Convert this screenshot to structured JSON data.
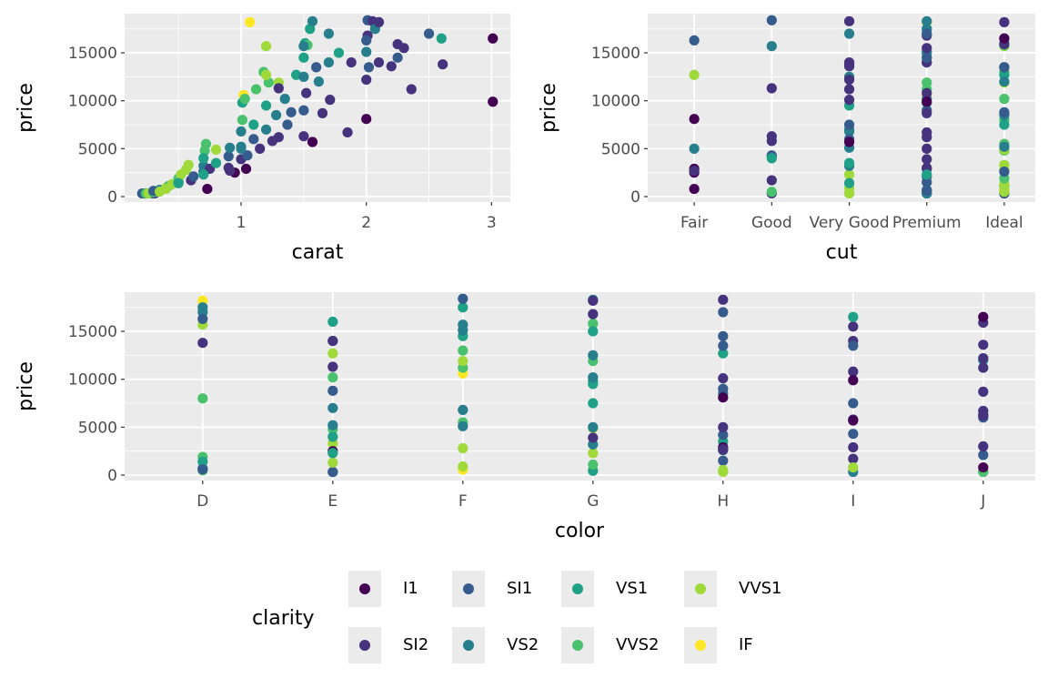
{
  "chart_data": {
    "type": "scatter",
    "fields": [
      "carat",
      "price",
      "cut",
      "color",
      "clarity"
    ],
    "points": [
      [
        0.23,
        326,
        "Ideal",
        "E",
        "SI2"
      ],
      [
        0.21,
        326,
        "Premium",
        "E",
        "SI1"
      ],
      [
        0.29,
        334,
        "Premium",
        "I",
        "VS2"
      ],
      [
        0.31,
        335,
        "Good",
        "J",
        "SI2"
      ],
      [
        0.24,
        336,
        "Very Good",
        "J",
        "VVS2"
      ],
      [
        0.26,
        337,
        "Very Good",
        "H",
        "VVS1"
      ],
      [
        0.3,
        450,
        "Ideal",
        "G",
        "VS1"
      ],
      [
        0.33,
        560,
        "Ideal",
        "F",
        "IF"
      ],
      [
        0.35,
        700,
        "Premium",
        "D",
        "VS2"
      ],
      [
        0.4,
        900,
        "Very Good",
        "F",
        "VVS1"
      ],
      [
        0.42,
        1100,
        "Ideal",
        "G",
        "VVS2"
      ],
      [
        0.45,
        1300,
        "Ideal",
        "E",
        "VVS1"
      ],
      [
        0.5,
        1500,
        "Premium",
        "H",
        "SI1"
      ],
      [
        0.5,
        1900,
        "Ideal",
        "D",
        "VVS2"
      ],
      [
        0.52,
        2300,
        "Very Good",
        "G",
        "VVS1"
      ],
      [
        0.56,
        2800,
        "Ideal",
        "F",
        "VVS1"
      ],
      [
        0.58,
        3300,
        "Ideal",
        "E",
        "VVS1"
      ],
      [
        0.6,
        1700,
        "Good",
        "I",
        "SI2"
      ],
      [
        0.62,
        2100,
        "Premium",
        "J",
        "SI1"
      ],
      [
        0.7,
        2600,
        "Ideal",
        "H",
        "SI1"
      ],
      [
        0.7,
        3200,
        "Very Good",
        "G",
        "VS2"
      ],
      [
        0.71,
        4800,
        "Ideal",
        "E",
        "VVS2"
      ],
      [
        0.72,
        5500,
        "Ideal",
        "F",
        "VVS2"
      ],
      [
        0.73,
        800,
        "Fair",
        "J",
        "I1"
      ],
      [
        0.75,
        2900,
        "Premium",
        "I",
        "SI2"
      ],
      [
        0.8,
        3500,
        "Very Good",
        "H",
        "VS1"
      ],
      [
        0.8,
        4900,
        "Ideal",
        "G",
        "VVS1"
      ],
      [
        0.9,
        3000,
        "Premium",
        "J",
        "SI2"
      ],
      [
        0.9,
        4200,
        "Good",
        "H",
        "SI1"
      ],
      [
        0.91,
        5100,
        "Very Good",
        "F",
        "VS2"
      ],
      [
        0.95,
        2500,
        "Fair",
        "E",
        "I1"
      ],
      [
        1.0,
        3900,
        "Premium",
        "G",
        "SI2"
      ],
      [
        1.0,
        5200,
        "Ideal",
        "E",
        "VS2"
      ],
      [
        1.0,
        6800,
        "Very Good",
        "F",
        "VS2"
      ],
      [
        1.01,
        8000,
        "Ideal",
        "D",
        "VVS2"
      ],
      [
        1.01,
        9800,
        "Premium",
        "G",
        "VS1"
      ],
      [
        1.02,
        10600,
        "Premium",
        "F",
        "IF"
      ],
      [
        1.03,
        10200,
        "Ideal",
        "E",
        "VVS2"
      ],
      [
        1.04,
        2900,
        "Fair",
        "H",
        "I1"
      ],
      [
        1.05,
        4300,
        "Good",
        "I",
        "SI1"
      ],
      [
        1.07,
        18200,
        "Premium",
        "D",
        "IF"
      ],
      [
        1.1,
        6000,
        "Very Good",
        "J",
        "SI1"
      ],
      [
        1.1,
        7500,
        "Ideal",
        "G",
        "VS1"
      ],
      [
        1.12,
        11200,
        "Premium",
        "F",
        "VVS2"
      ],
      [
        1.15,
        5000,
        "Premium",
        "H",
        "SI2"
      ],
      [
        1.18,
        13000,
        "Ideal",
        "F",
        "VVS2"
      ],
      [
        1.2,
        15700,
        "Ideal",
        "D",
        "VVS1"
      ],
      [
        1.2,
        7000,
        "Very Good",
        "E",
        "VS2"
      ],
      [
        1.2,
        9500,
        "Very Good",
        "G",
        "VS1"
      ],
      [
        1.22,
        11900,
        "Premium",
        "G",
        "VVS2"
      ],
      [
        1.25,
        5800,
        "Good",
        "I",
        "SI2"
      ],
      [
        1.28,
        8500,
        "Ideal",
        "H",
        "VS2"
      ],
      [
        1.3,
        11900,
        "Ideal",
        "F",
        "VVS1"
      ],
      [
        1.3,
        6200,
        "Premium",
        "J",
        "SI2"
      ],
      [
        1.35,
        10200,
        "Premium",
        "G",
        "VS2"
      ],
      [
        1.37,
        7500,
        "Very Good",
        "I",
        "SI1"
      ],
      [
        1.4,
        8800,
        "Ideal",
        "E",
        "SI1"
      ],
      [
        1.44,
        12700,
        "Ideal",
        "H",
        "VS1"
      ],
      [
        1.5,
        6300,
        "Good",
        "J",
        "SI2"
      ],
      [
        1.5,
        9000,
        "Premium",
        "H",
        "SI1"
      ],
      [
        1.5,
        12500,
        "Very Good",
        "G",
        "VS2"
      ],
      [
        1.5,
        14500,
        "Premium",
        "F",
        "VS1"
      ],
      [
        1.51,
        16000,
        "Ideal",
        "E",
        "VS1"
      ],
      [
        1.52,
        10800,
        "Premium",
        "I",
        "SI2"
      ],
      [
        1.53,
        15800,
        "Ideal",
        "G",
        "VVS2"
      ],
      [
        1.55,
        17500,
        "Premium",
        "F",
        "VS1"
      ],
      [
        1.57,
        18300,
        "Premium",
        "G",
        "VS2"
      ],
      [
        1.57,
        5700,
        "Very Good",
        "I",
        "I1"
      ],
      [
        1.6,
        13500,
        "Ideal",
        "H",
        "SI1"
      ],
      [
        1.62,
        12000,
        "Ideal",
        "J",
        "VS2"
      ],
      [
        1.65,
        8700,
        "Premium",
        "J",
        "SI2"
      ],
      [
        1.7,
        17000,
        "Very Good",
        "D",
        "VS2"
      ],
      [
        1.7,
        14000,
        "Premium",
        "E",
        "VS2"
      ],
      [
        1.71,
        10100,
        "Very Good",
        "H",
        "SI2"
      ],
      [
        1.78,
        15000,
        "Premium",
        "G",
        "VS1"
      ],
      [
        1.85,
        6700,
        "Premium",
        "J",
        "SI2"
      ],
      [
        1.88,
        14000,
        "Very Good",
        "I",
        "SI2"
      ],
      [
        2.0,
        8100,
        "Fair",
        "H",
        "I1"
      ],
      [
        2.0,
        12200,
        "Very Good",
        "J",
        "SI2"
      ],
      [
        2.0,
        15100,
        "Premium",
        "F",
        "VS2"
      ],
      [
        2.01,
        18400,
        "Good",
        "F",
        "SI1"
      ],
      [
        2.01,
        16800,
        "Premium",
        "G",
        "SI2"
      ],
      [
        2.02,
        13500,
        "Ideal",
        "I",
        "SI1"
      ],
      [
        2.05,
        18300,
        "Very Good",
        "H",
        "SI2"
      ],
      [
        2.07,
        17500,
        "Premium",
        "D",
        "VS2"
      ],
      [
        2.1,
        14000,
        "Premium",
        "E",
        "SI2"
      ],
      [
        2.1,
        18200,
        "Ideal",
        "G",
        "SI2"
      ],
      [
        2.2,
        13600,
        "Very Good",
        "J",
        "SI2"
      ],
      [
        2.25,
        14500,
        "Premium",
        "H",
        "SI1"
      ],
      [
        2.25,
        15900,
        "Ideal",
        "J",
        "SI2"
      ],
      [
        2.3,
        15500,
        "Premium",
        "I",
        "SI2"
      ],
      [
        2.36,
        11200,
        "Very Good",
        "J",
        "SI2"
      ],
      [
        2.5,
        17000,
        "Premium",
        "H",
        "SI1"
      ],
      [
        2.6,
        16500,
        "Ideal",
        "I",
        "VS1"
      ],
      [
        2.61,
        13800,
        "Very Good",
        "D",
        "SI2"
      ],
      [
        3.01,
        16500,
        "Ideal",
        "J",
        "I1"
      ],
      [
        3.01,
        9900,
        "Premium",
        "I",
        "I1"
      ],
      [
        0.91,
        2700,
        "Fair",
        "H",
        "SI2"
      ],
      [
        1.0,
        5000,
        "Fair",
        "G",
        "VS2"
      ],
      [
        1.2,
        12700,
        "Fair",
        "E",
        "VVS1"
      ],
      [
        2.0,
        16300,
        "Fair",
        "D",
        "SI1"
      ],
      [
        0.3,
        500,
        "Good",
        "D",
        "VVS2"
      ],
      [
        0.7,
        4000,
        "Good",
        "E",
        "VS1"
      ],
      [
        1.5,
        15700,
        "Good",
        "F",
        "VS2"
      ],
      [
        1.3,
        11300,
        "Good",
        "E",
        "SI2"
      ],
      [
        0.5,
        1400,
        "Very Good",
        "D",
        "VS1"
      ],
      [
        0.3,
        600,
        "Premium",
        "D",
        "SI1"
      ],
      [
        0.7,
        2300,
        "Premium",
        "E",
        "VS1"
      ],
      [
        0.4,
        800,
        "Ideal",
        "I",
        "VVS1"
      ],
      [
        0.35,
        520,
        "Ideal",
        "H",
        "VVS1"
      ]
    ],
    "panels": [
      {
        "x": "carat",
        "xlabel": "carat",
        "ylabel": "price",
        "xscale": "linear",
        "xlim": [
          0.07,
          3.15
        ],
        "xticks": [
          "1",
          "2",
          "3"
        ],
        "ylim": [
          -570,
          19090
        ],
        "yticks": [
          "0",
          "5000",
          "10000",
          "15000"
        ]
      },
      {
        "x": "cut",
        "xlabel": "cut",
        "ylabel": "price",
        "xscale": "discrete",
        "xticks": [
          "Fair",
          "Good",
          "Very Good",
          "Premium",
          "Ideal"
        ],
        "ylim": [
          -570,
          19090
        ],
        "yticks": [
          "0",
          "5000",
          "10000",
          "15000"
        ]
      },
      {
        "x": "color",
        "xlabel": "color",
        "ylabel": "price",
        "xscale": "discrete",
        "xticks": [
          "D",
          "E",
          "F",
          "G",
          "H",
          "I",
          "J"
        ],
        "ylim": [
          -570,
          19090
        ],
        "yticks": [
          "0",
          "5000",
          "10000",
          "15000"
        ]
      }
    ],
    "grid": true,
    "legend": {
      "title": "clarity",
      "placement": "bottom",
      "entries": [
        {
          "label": "I1",
          "color": "#440154"
        },
        {
          "label": "SI2",
          "color": "#46337E"
        },
        {
          "label": "SI1",
          "color": "#365C8D"
        },
        {
          "label": "VS2",
          "color": "#277F8E"
        },
        {
          "label": "VS1",
          "color": "#1FA187"
        },
        {
          "label": "VVS2",
          "color": "#4AC16D"
        },
        {
          "label": "VVS1",
          "color": "#9FDA3A"
        },
        {
          "label": "IF",
          "color": "#FDE725"
        }
      ]
    },
    "panel_background": "#EBEBEB"
  }
}
